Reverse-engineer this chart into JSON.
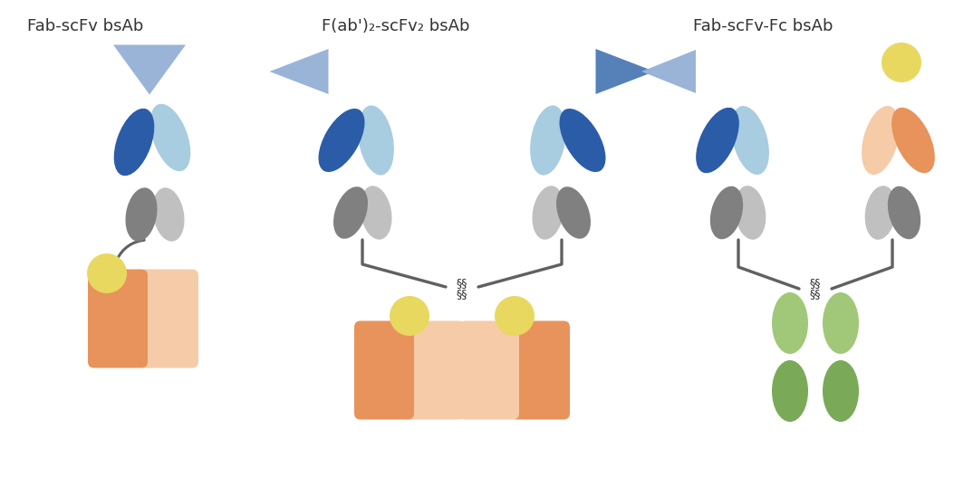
{
  "title1": "Fab-scFv bsAb",
  "title2": "F(ab')₂-scFv₂ bsAb",
  "title3": "Fab-scFv-Fc bsAb",
  "colors": {
    "dark_blue": "#2b5ca8",
    "light_blue": "#a8cce0",
    "dark_gray": "#808080",
    "light_gray": "#c0c0c0",
    "orange": "#e8935c",
    "light_orange": "#f5cba8",
    "yellow": "#e8d860",
    "tri_light": "#9ab4d8",
    "tri_dark": "#5580b8",
    "green_light": "#a0c878",
    "green_dark": "#7aaa58",
    "line_color": "#606060",
    "bg": "#ffffff"
  }
}
